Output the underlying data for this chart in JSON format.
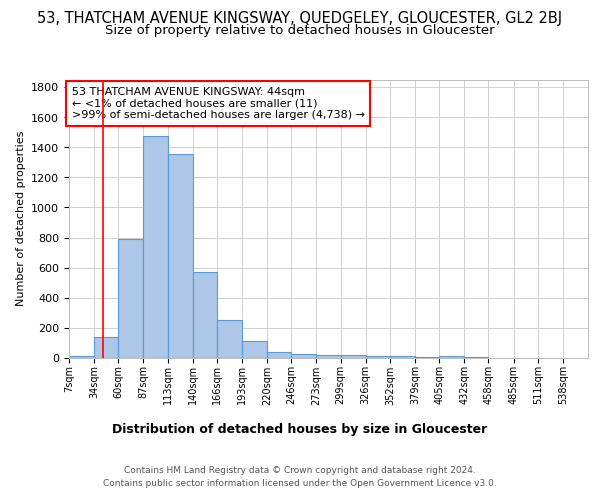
{
  "title": "53, THATCHAM AVENUE KINGSWAY, QUEDGELEY, GLOUCESTER, GL2 2BJ",
  "subtitle": "Size of property relative to detached houses in Gloucester",
  "xlabel": "Distribution of detached houses by size in Gloucester",
  "ylabel": "Number of detached properties",
  "footer_line1": "Contains HM Land Registry data © Crown copyright and database right 2024.",
  "footer_line2": "Contains public sector information licensed under the Open Government Licence v3.0.",
  "annotation_line1": "53 THATCHAM AVENUE KINGSWAY: 44sqm",
  "annotation_line2": "← <1% of detached houses are smaller (11)",
  "annotation_line3": ">99% of semi-detached houses are larger (4,738) →",
  "bar_left_edges": [
    7,
    34,
    60,
    87,
    113,
    140,
    166,
    193,
    220,
    246,
    273,
    299,
    326,
    352,
    379,
    405,
    432,
    458,
    485,
    511
  ],
  "bar_widths": [
    27,
    26,
    27,
    26,
    27,
    26,
    27,
    27,
    26,
    27,
    26,
    27,
    26,
    27,
    26,
    27,
    26,
    27,
    26,
    27
  ],
  "bar_heights": [
    11,
    134,
    791,
    1478,
    1357,
    567,
    248,
    110,
    38,
    24,
    14,
    14,
    8,
    8,
    1,
    10,
    1,
    0,
    0,
    0
  ],
  "bar_color": "#aec6e8",
  "bar_edgecolor": "#5b9bd5",
  "red_line_x": 44,
  "ylim": [
    0,
    1850
  ],
  "yticks": [
    0,
    200,
    400,
    600,
    800,
    1000,
    1200,
    1400,
    1600,
    1800
  ],
  "xtick_labels": [
    "7sqm",
    "34sqm",
    "60sqm",
    "87sqm",
    "113sqm",
    "140sqm",
    "166sqm",
    "193sqm",
    "220sqm",
    "246sqm",
    "273sqm",
    "299sqm",
    "326sqm",
    "352sqm",
    "379sqm",
    "405sqm",
    "432sqm",
    "458sqm",
    "485sqm",
    "511sqm",
    "538sqm"
  ],
  "xtick_positions": [
    7,
    34,
    60,
    87,
    113,
    140,
    166,
    193,
    220,
    246,
    273,
    299,
    326,
    352,
    379,
    405,
    432,
    458,
    485,
    511,
    538
  ],
  "xlim": [
    7,
    565
  ],
  "grid_color": "#d0d0d0",
  "background_color": "#ffffff",
  "title_fontsize": 10.5,
  "subtitle_fontsize": 9.5,
  "xlabel_fontsize": 9,
  "ylabel_fontsize": 8,
  "footer_fontsize": 6.5,
  "annot_fontsize": 8
}
